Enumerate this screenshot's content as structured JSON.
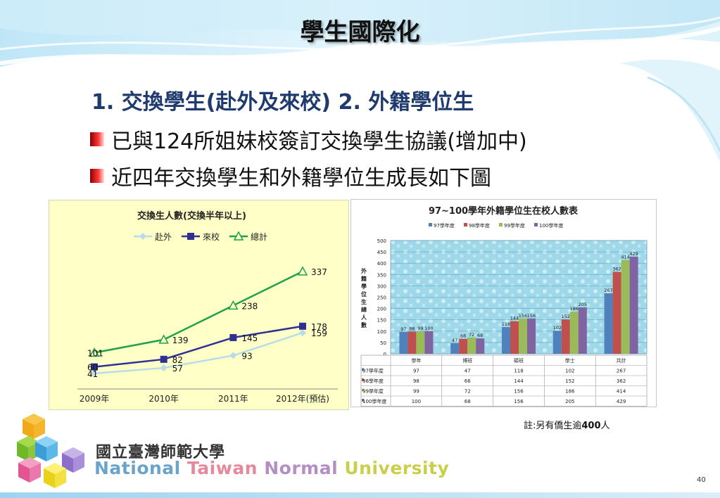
{
  "title": "學生國際化",
  "headline": "1. 交換學生(赴外及來校) 2. 外籍學位生",
  "bullets": [
    "已與124所姐妹校簽訂交換學生協議(增加中)",
    "近四年交換學生和外籍學位生成長如下圖"
  ],
  "chart_data": [
    {
      "type": "line",
      "title": "交換生人數(交換半年以上)",
      "categories": [
        "2009年",
        "2010年",
        "2011年",
        "2012年(預估)"
      ],
      "series": [
        {
          "name": "赴外",
          "values": [
            41,
            57,
            93,
            159
          ],
          "color": "#b7dde8",
          "marker": "diamond"
        },
        {
          "name": "來校",
          "values": [
            60,
            82,
            145,
            178
          ],
          "color": "#2e3192",
          "marker": "square"
        },
        {
          "name": "總計",
          "values": [
            101,
            139,
            238,
            337
          ],
          "color": "#21a04a",
          "marker": "triangle"
        }
      ],
      "ylim": [
        0,
        400
      ],
      "legend": "top",
      "grid": false
    },
    {
      "type": "bar",
      "title": "97~100學年外籍學位生在校人數表",
      "ylabel": "外籍學位生總人數",
      "categories": [
        "學年",
        "博班",
        "碩班",
        "學士",
        "共計"
      ],
      "series": [
        {
          "name": "97學年度",
          "values": [
            97,
            47,
            118,
            102,
            267
          ],
          "color": "#4f81bd"
        },
        {
          "name": "98學年度",
          "values": [
            98,
            66,
            144,
            152,
            362
          ],
          "color": "#c0504d"
        },
        {
          "name": "99學年度",
          "values": [
            99,
            72,
            156,
            186,
            414
          ],
          "color": "#9bbb59"
        },
        {
          "name": "100學年度",
          "values": [
            100,
            68,
            156,
            205,
            429
          ],
          "color": "#8064a2"
        }
      ],
      "yticks": [
        0,
        50,
        100,
        150,
        200,
        250,
        300,
        350,
        400,
        450,
        500
      ],
      "ylim": [
        0,
        500
      ],
      "legend": "top",
      "grid": true,
      "data_table": true
    }
  ],
  "note": {
    "prefix": "註:另有僑生逾",
    "number": "400",
    "suffix": "人"
  },
  "logo": {
    "name_zh": "國立臺灣師範大學",
    "name_en": [
      "National",
      "Taiwan",
      "Normal",
      "University"
    ]
  },
  "page_number": "40"
}
